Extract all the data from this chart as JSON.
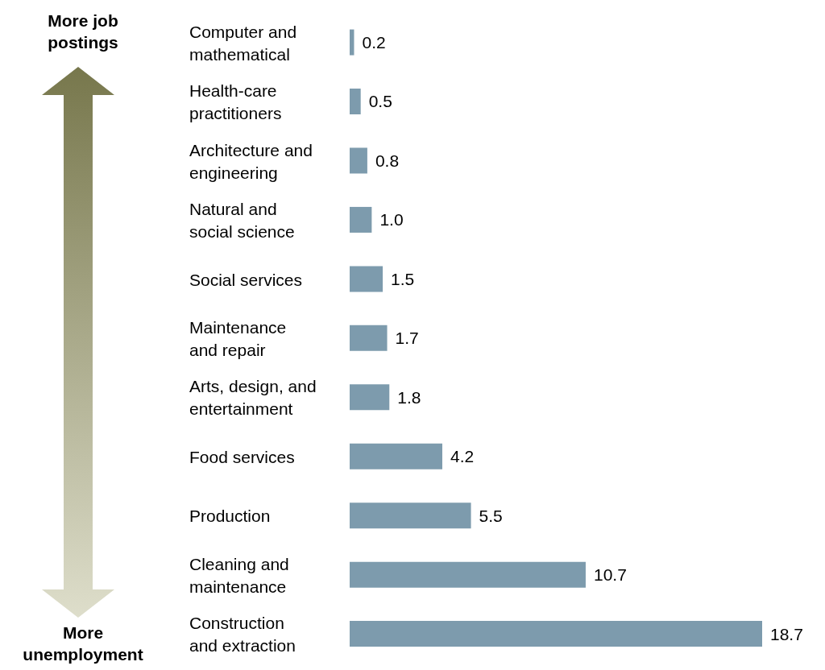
{
  "chart_data": {
    "type": "bar",
    "orientation": "horizontal",
    "categories": [
      "Computer and\nmathematical",
      "Health-care\npractitioners",
      "Architecture and\nengineering",
      "Natural and\nsocial science",
      "Social services",
      "Maintenance\nand repair",
      "Arts, design, and\nentertainment",
      "Food services",
      "Production",
      "Cleaning and\nmaintenance",
      "Construction\nand extraction"
    ],
    "values": [
      0.2,
      0.5,
      0.8,
      1.0,
      1.5,
      1.7,
      1.8,
      4.2,
      5.5,
      10.7,
      18.7
    ],
    "color": "#7d9bad",
    "value_labels": [
      "0.2",
      "0.5",
      "0.8",
      "1.0",
      "1.5",
      "1.7",
      "1.8",
      "4.2",
      "5.5",
      "10.7",
      "18.7"
    ],
    "annotations": [
      "More job postings",
      "More unemployment"
    ],
    "grid": false,
    "legend": false
  }
}
